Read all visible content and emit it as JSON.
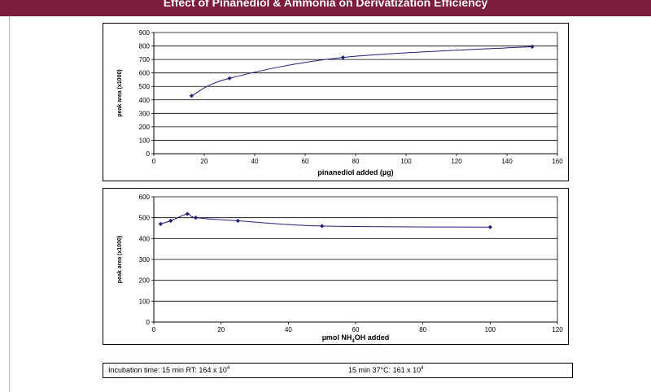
{
  "header": {
    "title": "Effect of Pinanediol & Ammonia on Derivatization Efficiency"
  },
  "colors": {
    "header_bg": "#7a1c3c",
    "series": "#1f1f7a",
    "marker": "#1f1f7a"
  },
  "chart_data": [
    {
      "type": "line",
      "title": "",
      "xlabel": "pinanediol added (µg)",
      "ylabel": "peak area (x1000)",
      "xlim": [
        0,
        160
      ],
      "ylim": [
        0,
        900
      ],
      "xticks": [
        0,
        20,
        40,
        60,
        80,
        100,
        120,
        140,
        160
      ],
      "yticks": [
        0,
        100,
        200,
        300,
        400,
        500,
        600,
        700,
        800,
        900
      ],
      "grid": true,
      "series": [
        {
          "x": [
            15,
            30,
            75,
            150
          ],
          "y": [
            430,
            560,
            715,
            795
          ]
        }
      ]
    },
    {
      "type": "line",
      "title": "",
      "xlabel_prefix": "µmol NH",
      "xlabel_sub": "4",
      "xlabel_suffix": "OH added",
      "ylabel": "peak area (x1000)",
      "xlim": [
        0,
        120
      ],
      "ylim": [
        0,
        600
      ],
      "xticks": [
        0,
        20,
        40,
        60,
        80,
        100,
        120
      ],
      "yticks": [
        0,
        100,
        200,
        300,
        400,
        500,
        600
      ],
      "grid": true,
      "series": [
        {
          "x": [
            2,
            5,
            10,
            12.5,
            25,
            50,
            100
          ],
          "y": [
            470,
            485,
            518,
            500,
            485,
            460,
            455
          ]
        }
      ]
    }
  ],
  "footer": {
    "left_text": "Incubation time: 15 min RT:  164 x 10",
    "left_sup": "4",
    "right_text": "15 min 37°C:  161 x 10",
    "right_sup": "4"
  }
}
